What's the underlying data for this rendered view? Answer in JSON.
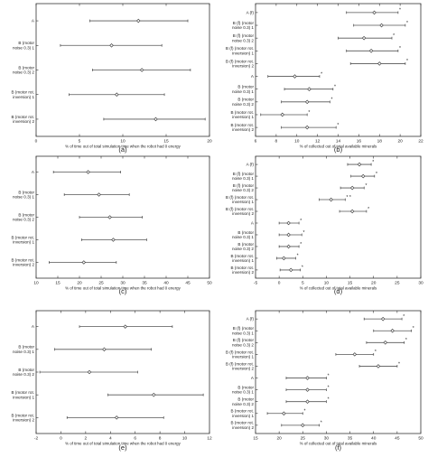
{
  "chart_data": [
    {
      "panel": "a",
      "caption": "(a)",
      "type": "scatter",
      "xlabel": "% of time out of total simulation time when the robot had 0 energy",
      "xlim": [
        0,
        20
      ],
      "xticks": [
        0,
        5,
        10,
        15,
        20
      ],
      "categories": [
        [
          "A"
        ],
        [
          "B (motor",
          "noise 0.3) 1"
        ],
        [
          "B (motor",
          "noise 0.3) 2"
        ],
        [
          "B (motor rot.",
          "inversion) 1"
        ],
        [
          "B (motor rot.",
          "inversion) 2"
        ]
      ],
      "points": [
        {
          "mean": 11.8,
          "low": 6.2,
          "high": 17.5,
          "star": ""
        },
        {
          "mean": 8.7,
          "low": 2.8,
          "high": 14.5,
          "star": ""
        },
        {
          "mean": 12.2,
          "low": 6.5,
          "high": 17.8,
          "star": ""
        },
        {
          "mean": 9.3,
          "low": 3.8,
          "high": 14.8,
          "star": ""
        },
        {
          "mean": 13.8,
          "low": 7.8,
          "high": 19.5,
          "star": ""
        }
      ]
    },
    {
      "panel": "b",
      "caption": "(b)",
      "type": "scatter",
      "xlabel": "% of collected out of total available minerals",
      "xlim": [
        6,
        22
      ],
      "xticks": [
        6,
        8,
        10,
        12,
        14,
        16,
        18,
        20,
        22
      ],
      "categories": [
        [
          "A (f)"
        ],
        [
          "B (f) (motor",
          "noise 0.3) 1"
        ],
        [
          "B (f) (motor",
          "noise 0.3) 2"
        ],
        [
          "B (f) (motor rot.",
          "inversion) 1"
        ],
        [
          "B (f) (motor rot.",
          "inversion) 2"
        ],
        [
          "A"
        ],
        [
          "B (motor",
          "noise 0.3) 1"
        ],
        [
          "B (motor",
          "noise 0.3) 2"
        ],
        [
          "B (motor rot.",
          "inversion) 1"
        ],
        [
          "B (motor rot.",
          "inversion) 2"
        ]
      ],
      "points": [
        {
          "mean": 17.5,
          "low": 14.8,
          "high": 19.8,
          "star": "*"
        },
        {
          "mean": 18.2,
          "low": 15.5,
          "high": 20.5,
          "star": "*"
        },
        {
          "mean": 16.5,
          "low": 14.0,
          "high": 19.2,
          "star": "*"
        },
        {
          "mean": 17.2,
          "low": 14.8,
          "high": 19.8,
          "star": "*"
        },
        {
          "mean": 18.0,
          "low": 15.2,
          "high": 20.5,
          "star": "*"
        },
        {
          "mean": 9.8,
          "low": 7.2,
          "high": 12.2,
          "star": "*"
        },
        {
          "mean": 11.2,
          "low": 8.8,
          "high": 13.5,
          "star": "*"
        },
        {
          "mean": 11.0,
          "low": 8.5,
          "high": 13.2,
          "star": "*"
        },
        {
          "mean": 8.6,
          "low": 6.5,
          "high": 11.0,
          "star": "*"
        },
        {
          "mean": 11.0,
          "low": 8.5,
          "high": 13.8,
          "star": "*"
        }
      ]
    },
    {
      "panel": "c",
      "caption": "(c)",
      "type": "scatter",
      "xlabel": "% of time out of total simulation time when the robot had 0 energy",
      "xlim": [
        10,
        50
      ],
      "xticks": [
        10,
        15,
        20,
        25,
        30,
        35,
        40,
        45,
        50
      ],
      "categories": [
        [
          "A"
        ],
        [
          "B (motor",
          "noise 0.3) 1"
        ],
        [
          "B (motor",
          "noise 0.3) 2"
        ],
        [
          "B (motor rot.",
          "inversion) 1"
        ],
        [
          "B (motor rot.",
          "inversion) 2"
        ]
      ],
      "points": [
        {
          "mean": 22.0,
          "low": 14.0,
          "high": 29.5,
          "star": ""
        },
        {
          "mean": 24.5,
          "low": 16.5,
          "high": 31.5,
          "star": ""
        },
        {
          "mean": 27.0,
          "low": 20.0,
          "high": 34.5,
          "star": ""
        },
        {
          "mean": 27.8,
          "low": 20.5,
          "high": 35.5,
          "star": ""
        },
        {
          "mean": 21.0,
          "low": 13.0,
          "high": 28.5,
          "star": ""
        }
      ]
    },
    {
      "panel": "d",
      "caption": "(d)",
      "type": "scatter",
      "xlabel": "% of collected out of total available minerals",
      "xlim": [
        -5,
        30
      ],
      "xticks": [
        -5,
        0,
        5,
        10,
        15,
        20,
        25,
        30
      ],
      "categories": [
        [
          "A (f)"
        ],
        [
          "B (f) (motor",
          "noise 0.3) 1"
        ],
        [
          "B (f) (motor",
          "noise 0.3) 2"
        ],
        [
          "B (f) (motor rot.",
          "inversion) 1"
        ],
        [
          "B (f) (motor rot.",
          "inversion) 2"
        ],
        [
          "A"
        ],
        [
          "B (motor",
          "noise 0.3) 1"
        ],
        [
          "B (motor",
          "noise 0.3) 2"
        ],
        [
          "B (motor rot.",
          "inversion) 1"
        ],
        [
          "B (motor rot.",
          "inversion) 2"
        ]
      ],
      "points": [
        {
          "mean": 17.0,
          "low": 14.5,
          "high": 19.5,
          "star": "*"
        },
        {
          "mean": 17.8,
          "low": 15.2,
          "high": 20.2,
          "star": "*"
        },
        {
          "mean": 15.5,
          "low": 13.0,
          "high": 18.0,
          "star": "*"
        },
        {
          "mean": 11.0,
          "low": 8.5,
          "high": 14.0,
          "star": "* *"
        },
        {
          "mean": 15.5,
          "low": 12.8,
          "high": 18.5,
          "star": "*"
        },
        {
          "mean": 2.0,
          "low": 0.0,
          "high": 4.2,
          "star": "*"
        },
        {
          "mean": 2.0,
          "low": 0.0,
          "high": 4.8,
          "star": "*"
        },
        {
          "mean": 2.0,
          "low": 0.0,
          "high": 4.2,
          "star": "*"
        },
        {
          "mean": 1.0,
          "low": -0.5,
          "high": 3.5,
          "star": "*"
        },
        {
          "mean": 2.5,
          "low": 0.2,
          "high": 4.5,
          "star": "*"
        }
      ]
    },
    {
      "panel": "e",
      "caption": "(e)",
      "type": "scatter",
      "xlabel": "% of time out of total simulation time when the robot had 0 energy",
      "xlim": [
        -2,
        12
      ],
      "xticks": [
        -2,
        0,
        2,
        4,
        6,
        8,
        10,
        12
      ],
      "categories": [
        [
          "A"
        ],
        [
          "B (motor",
          "noise 0.3) 1"
        ],
        [
          "B (motor",
          "noise 0.3) 2"
        ],
        [
          "B (motor rot.",
          "inversion) 1"
        ],
        [
          "B (motor rot.",
          "inversion) 2"
        ]
      ],
      "points": [
        {
          "mean": 5.2,
          "low": 1.5,
          "high": 9.0,
          "star": ""
        },
        {
          "mean": 3.5,
          "low": -0.5,
          "high": 7.3,
          "star": ""
        },
        {
          "mean": 2.3,
          "low": -1.7,
          "high": 6.2,
          "star": ""
        },
        {
          "mean": 7.5,
          "low": 3.8,
          "high": 11.5,
          "star": ""
        },
        {
          "mean": 4.5,
          "low": 0.5,
          "high": 8.3,
          "star": ""
        }
      ]
    },
    {
      "panel": "f",
      "caption": "(f)",
      "type": "scatter",
      "xlabel": "% of collected out of total available minerals",
      "xlim": [
        15,
        50
      ],
      "xticks": [
        15,
        20,
        25,
        30,
        35,
        40,
        45,
        50
      ],
      "categories": [
        [
          "A (f)"
        ],
        [
          "B (f) (motor",
          "noise 0.3) 1"
        ],
        [
          "B (f) (motor",
          "noise 0.3) 2"
        ],
        [
          "B (f) (motor rot.",
          "inversion) 1"
        ],
        [
          "B (f) (motor rot.",
          "inversion) 2"
        ],
        [
          "A"
        ],
        [
          "B (motor",
          "noise 0.3) 1"
        ],
        [
          "B (motor",
          "noise 0.3) 2"
        ],
        [
          "B (motor rot.",
          "inversion) 1"
        ],
        [
          "B (motor rot.",
          "inversion) 2"
        ]
      ],
      "points": [
        {
          "mean": 42.0,
          "low": 38.0,
          "high": 46.0,
          "star": "*"
        },
        {
          "mean": 44.0,
          "low": 40.0,
          "high": 48.0,
          "star": "*"
        },
        {
          "mean": 42.5,
          "low": 38.5,
          "high": 46.5,
          "star": "*"
        },
        {
          "mean": 36.0,
          "low": 32.0,
          "high": 40.0,
          "star": "*"
        },
        {
          "mean": 41.0,
          "low": 37.0,
          "high": 45.0,
          "star": "*"
        },
        {
          "mean": 26.0,
          "low": 21.5,
          "high": 30.0,
          "star": "*"
        },
        {
          "mean": 26.0,
          "low": 21.5,
          "high": 30.0,
          "star": "*"
        },
        {
          "mean": 26.0,
          "low": 21.5,
          "high": 30.0,
          "star": "*"
        },
        {
          "mean": 21.0,
          "low": 17.5,
          "high": 25.0,
          "star": "*"
        },
        {
          "mean": 25.0,
          "low": 20.5,
          "high": 28.5,
          "star": "*"
        }
      ]
    }
  ]
}
